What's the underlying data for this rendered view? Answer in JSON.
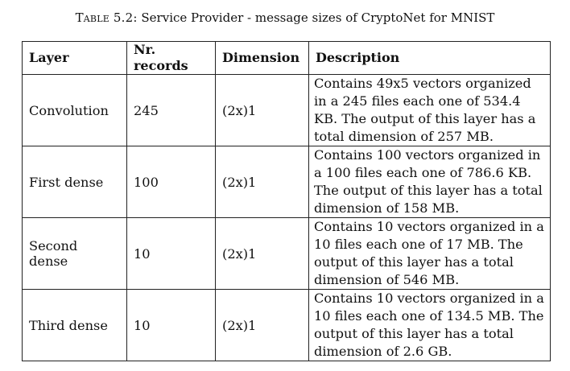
{
  "caption": {
    "lead": "Table 5.2:",
    "text": "Service Provider - message sizes of CryptoNet for MNIST"
  },
  "table": {
    "headers": {
      "layer": "Layer",
      "records": "Nr. records",
      "dimension": "Dimension",
      "description": "Description"
    },
    "rows": [
      {
        "layer": "Convolution",
        "records": "245",
        "dimension": "(2x)1",
        "description": "Contains 49x5 vectors organized in a 245 files each one of 534.4 KB. The output of this layer has a total dimension of 257 MB."
      },
      {
        "layer": "First dense",
        "records": "100",
        "dimension": "(2x)1",
        "description": "Contains 100 vectors organized in a 100 files each one of 786.6 KB. The output of this layer has a total dimension of 158 MB."
      },
      {
        "layer": "Second dense",
        "records": "10",
        "dimension": "(2x)1",
        "description": "Contains 10 vectors organized in a 10 files each one of 17 MB. The output of this layer has a total dimension of 546 MB."
      },
      {
        "layer": "Third dense",
        "records": "10",
        "dimension": "(2x)1",
        "description": "Contains 10 vectors organized in a 10 files each one of 134.5 MB. The output of this layer has a total dimension of 2.6 GB."
      }
    ]
  }
}
